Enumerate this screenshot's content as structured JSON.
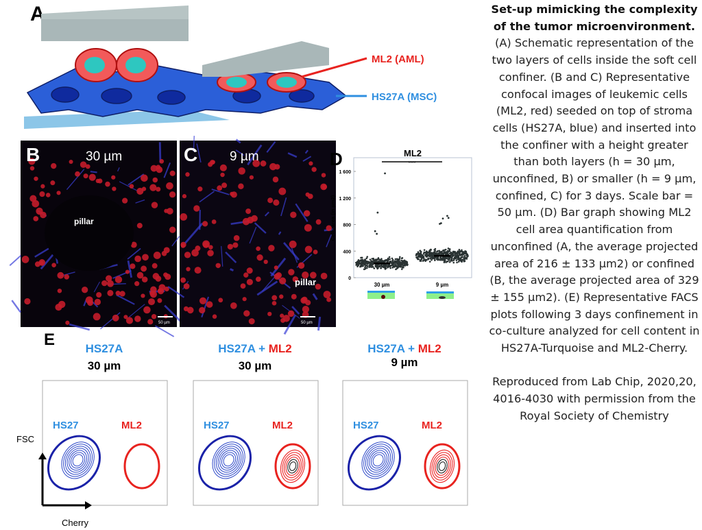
{
  "figure": {
    "panel_a": {
      "letter": "A",
      "label_ml2": "ML2 (AML)",
      "label_hs27a": "HS27A (MSC)"
    },
    "panel_b": {
      "letter": "B",
      "height": "30 µm",
      "pillar": "pillar",
      "scale_bar": "50 µm"
    },
    "panel_c": {
      "letter": "C",
      "height": "9 µm",
      "pillar": "pillar",
      "scale_bar": "50 µm"
    },
    "panel_d": {
      "letter": "D"
    },
    "panel_e": {
      "letter": "E",
      "x_axis": "Cherry",
      "y_axis": "FSC",
      "plots": [
        {
          "title_a": "HS27A",
          "title_plus": "",
          "title_b": "",
          "height": "30 µm",
          "label_hs27": "HS27",
          "label_ml2": "ML2"
        },
        {
          "title_a": "HS27A",
          "title_plus": " + ",
          "title_b": "ML2",
          "height": "30 µm",
          "label_hs27": "HS27",
          "label_ml2": "ML2"
        },
        {
          "title_a": "HS27A",
          "title_plus": " + ",
          "title_b": "ML2",
          "height": "9 µm",
          "label_hs27": "HS27",
          "label_ml2": "ML2"
        }
      ]
    },
    "colors": {
      "ml2_red": "#e8231f",
      "hs27a_blue": "#2f8fe0",
      "contour_navy": "#1a22a8"
    }
  },
  "chart_data": {
    "type": "scatter",
    "title": "ML2",
    "ylabel": "Cells area (in µm2)",
    "xlabel": "",
    "categories": [
      "30 µm",
      "9 µm"
    ],
    "yticks": [
      "0",
      "400",
      "800",
      "1 200",
      "1 600"
    ],
    "ylim": [
      0,
      1750
    ],
    "grid": false,
    "significance": "****",
    "series": [
      {
        "category": "30 µm",
        "mean": 216,
        "sd": 133,
        "outliers": [
          1570,
          980,
          700,
          660
        ]
      },
      {
        "category": "9 µm",
        "mean": 329,
        "sd": 155,
        "outliers": [
          930,
          900,
          890,
          820,
          810
        ]
      }
    ]
  },
  "caption": {
    "title": "Set-up mimicking the complexity of the tumor microenvironment.",
    "body": "(A) Schematic representation of the two layers of cells inside the soft cell confiner. (B and C) Representative confocal images of leukemic cells (ML2, red) seeded on top of stroma cells (HS27A, blue) and inserted into the confiner with a height greater than both layers (h = 30 µm, unconfined, B) or smaller (h = 9 µm, confined, C) for 3 days. Scale bar = 50 µm. (D) Bar graph showing ML2 cell area quantification from unconfined (A, the average projected area of 216 ± 133 µm2) or confined (B, the average projected area of 329 ± 155 µm2). (E) Representative FACS plots following 3 days confinement in co-culture analyzed for cell content in HS27A-Turquoise and ML2-Cherry.",
    "credit": "Reproduced from Lab Chip, 2020,20, 4016-4030 with permission from the Royal Society of Chemistry"
  }
}
